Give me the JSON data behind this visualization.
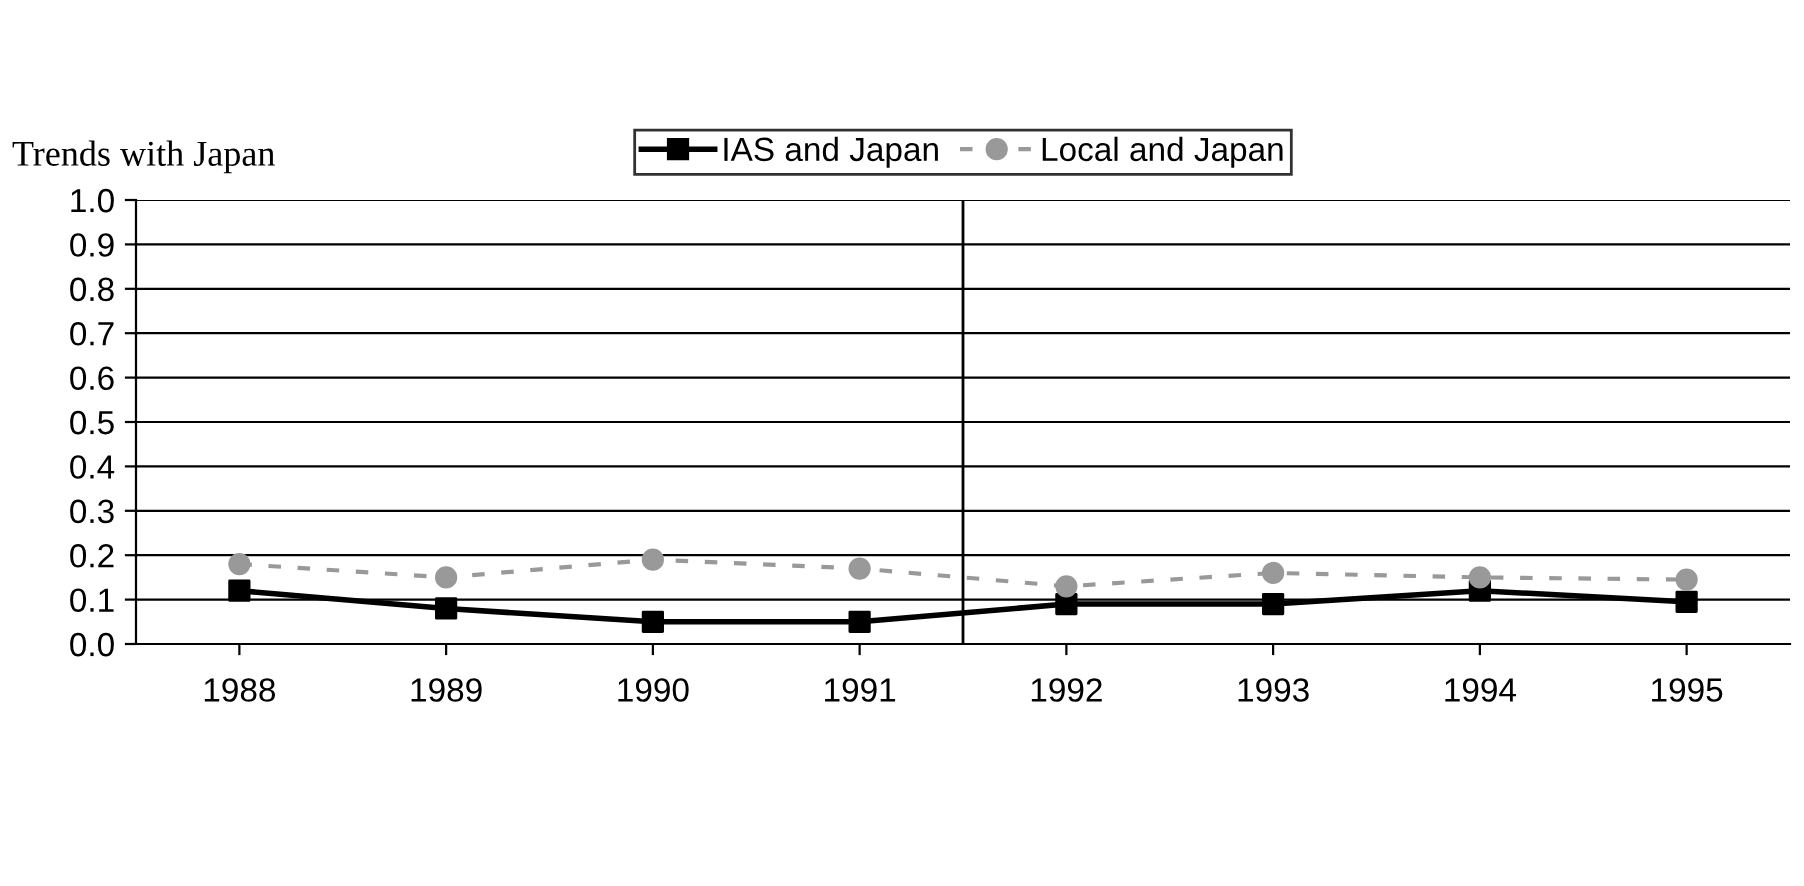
{
  "chart_data": {
    "type": "line",
    "title": "Trends with Japan",
    "x": [
      1988,
      1989,
      1990,
      1991,
      1992,
      1993,
      1994,
      1995
    ],
    "xlim": [
      1987.5,
      1995.5
    ],
    "xticks": [
      1988,
      1989,
      1990,
      1991,
      1992,
      1993,
      1994,
      1995
    ],
    "ylim": [
      0,
      1
    ],
    "yticks": [
      {
        "value": 0,
        "label": "0.0"
      },
      {
        "value": 0.1,
        "label": "0.1"
      },
      {
        "value": 0.2,
        "label": "0.2"
      },
      {
        "value": 0.3,
        "label": "0.3"
      },
      {
        "value": 0.4,
        "label": "0.4"
      },
      {
        "value": 0.5,
        "label": "0.5"
      },
      {
        "value": 0.6,
        "label": "0.6"
      },
      {
        "value": 0.7,
        "label": "0.7"
      },
      {
        "value": 0.8,
        "label": "0.8"
      },
      {
        "value": 0.9,
        "label": "0.9"
      },
      {
        "value": 1,
        "label": "1.0"
      }
    ],
    "grid": "y",
    "legend": "top",
    "series": [
      {
        "name": "IAS and Japan",
        "color": "#000000",
        "marker": "square",
        "line_style": "solid",
        "values": [
          0.12,
          0.08,
          0.05,
          0.05,
          0.09,
          0.09,
          0.12,
          0.095
        ]
      },
      {
        "name": "Local and Japan",
        "color": "#999999",
        "marker": "circle",
        "line_style": "dashed",
        "values": [
          0.18,
          0.15,
          0.19,
          0.17,
          0.13,
          0.16,
          0.15,
          0.145
        ]
      }
    ],
    "ref_lines": [
      {
        "axis": "x",
        "value": 1991.5,
        "color": "#000000",
        "line_style": "solid"
      }
    ]
  }
}
